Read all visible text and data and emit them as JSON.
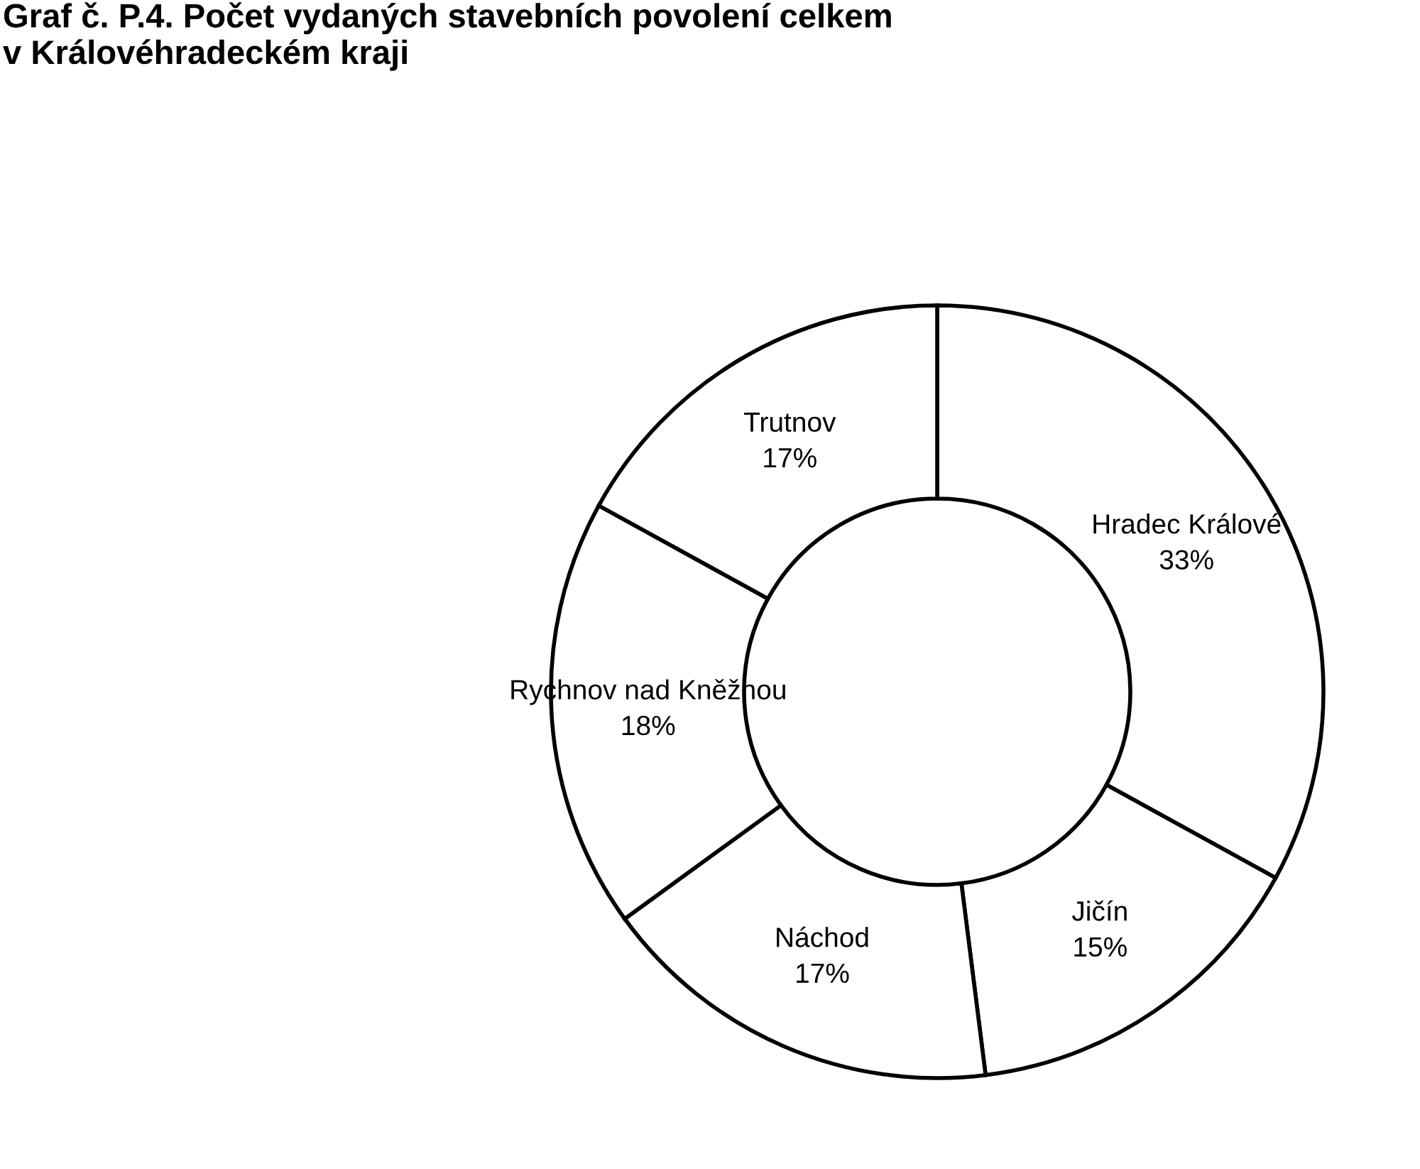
{
  "chart_data": {
    "type": "donut",
    "title": "Graf č. P.4. Počet vydaných stavebních povolení celkem\nv Královéhradeckém kraji",
    "categories": [
      "Hradec Králové",
      "Jičín",
      "Náchod",
      "Rychnov nad Kněžnou",
      "Trutnov"
    ],
    "values": [
      33,
      15,
      17,
      18,
      17
    ],
    "value_labels": [
      "33%",
      "15%",
      "17%",
      "18%",
      "17%"
    ],
    "colors": [
      "#ffffff",
      "#ffffff",
      "#ffffff",
      "#ffffff",
      "#ffffff"
    ],
    "legend": false
  }
}
